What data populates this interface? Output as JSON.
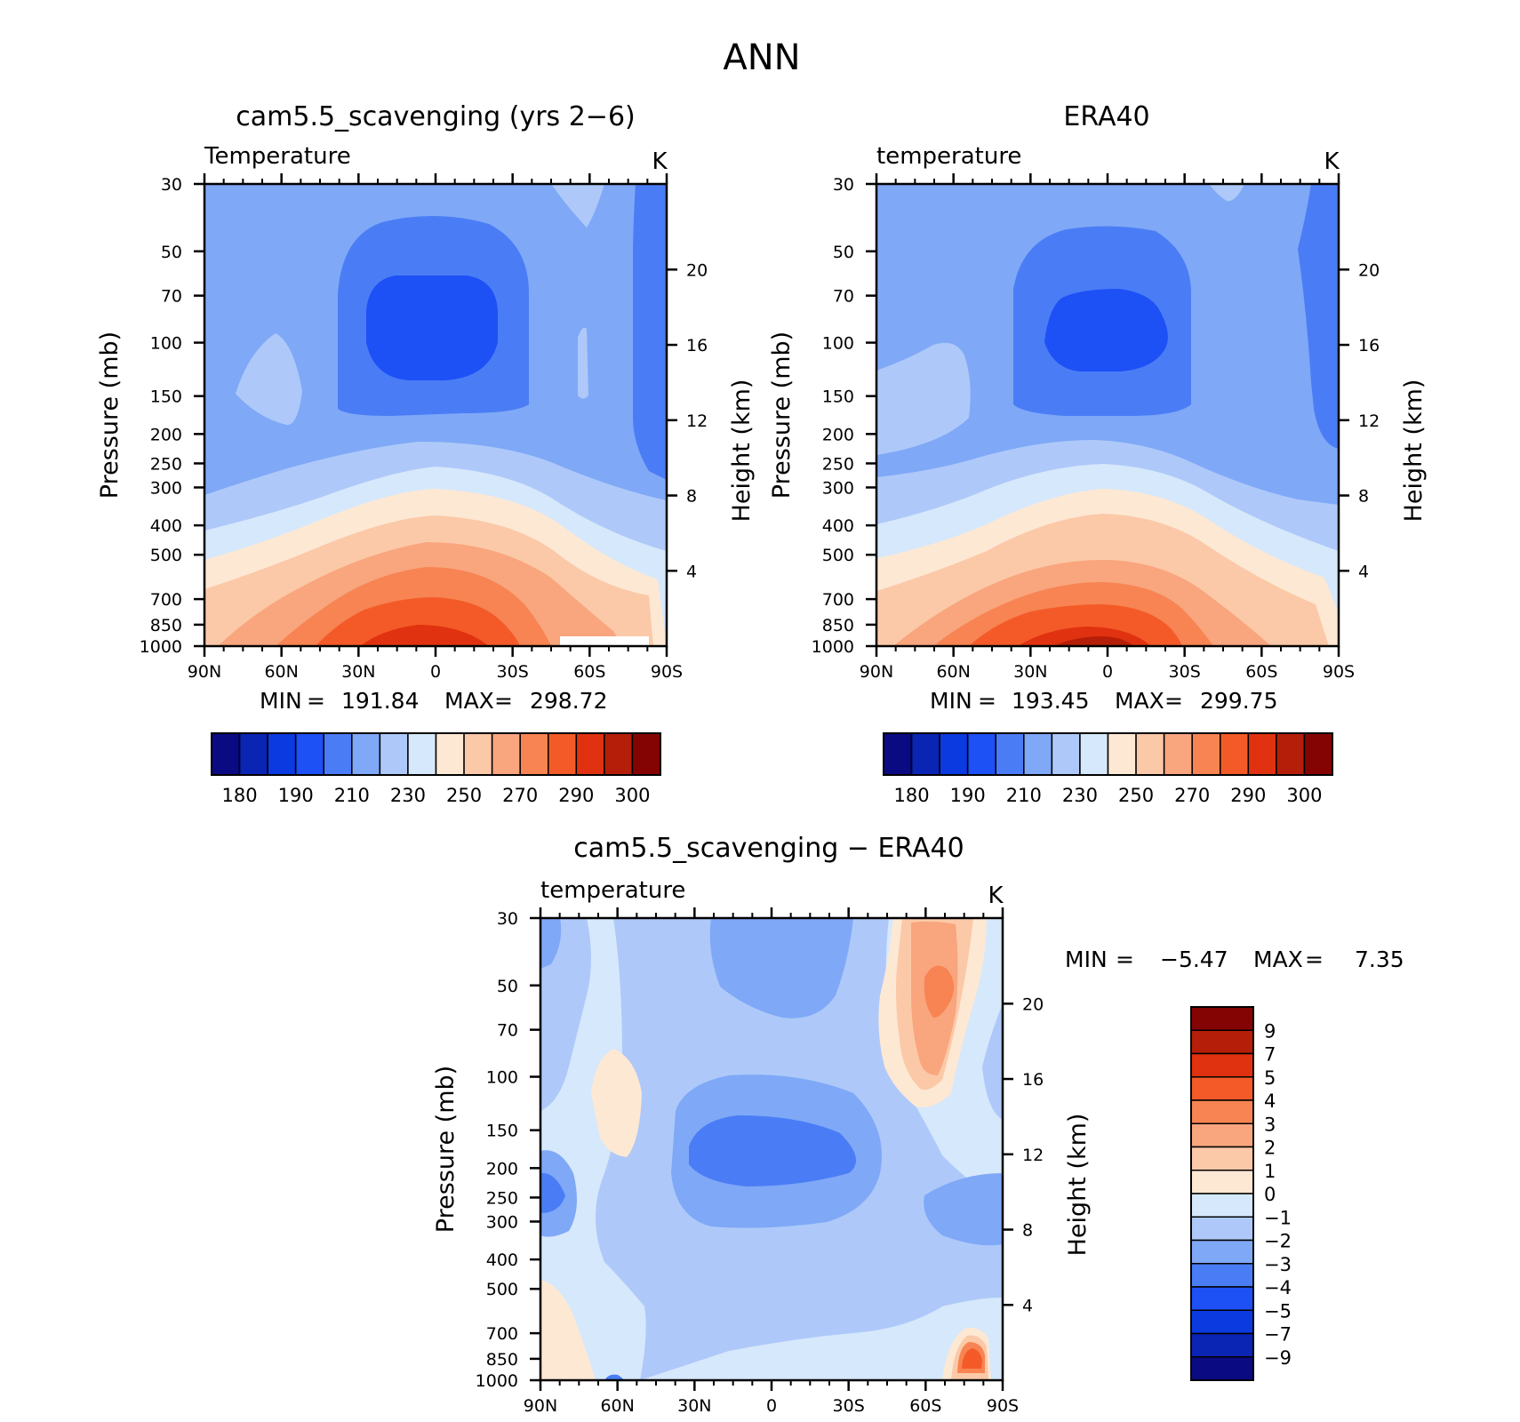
{
  "title": "ANN",
  "ramp_colors": [
    "#0a0a82",
    "#0a24b4",
    "#0a3ae0",
    "#1d50f5",
    "#4a7df5",
    "#7fa8f7",
    "#aec9f9",
    "#d6e8fb",
    "#fde8d4",
    "#fbc9a8",
    "#f9a57e",
    "#f78452",
    "#f45a28",
    "#e03210",
    "#b51e08",
    "#840404"
  ],
  "chart_data": [
    {
      "type": "heatmap",
      "panel": "cam5.5_scavenging (yrs 2-6)",
      "title": "cam5.5_scavenging (yrs 2−6)",
      "subtitle_left": "Temperature",
      "units": "K",
      "ylabel": "Pressure (mb)",
      "ylabel_right": "Height (km)",
      "x_ticks": [
        "90N",
        "60N",
        "30N",
        "0",
        "30S",
        "60S",
        "90S"
      ],
      "y_ticks": [
        "30",
        "50",
        "70",
        "100",
        "150",
        "200",
        "250",
        "300",
        "400",
        "500",
        "700",
        "850",
        "1000"
      ],
      "y_ticks_right": [
        "20",
        "16",
        "12",
        "8",
        "4"
      ],
      "min_label": "MIN",
      "min": "191.84",
      "max_label": "MAX",
      "max": "298.72",
      "colorbar_labels": [
        "180",
        "190",
        "210",
        "230",
        "250",
        "270",
        "290",
        "300"
      ],
      "xlim": [
        -90,
        90
      ],
      "ylim_mb": [
        30,
        1000
      ]
    },
    {
      "type": "heatmap",
      "panel": "ERA40",
      "title": "ERA40",
      "subtitle_left": "temperature",
      "units": "K",
      "ylabel": "Pressure (mb)",
      "ylabel_right": "Height (km)",
      "x_ticks": [
        "90N",
        "60N",
        "30N",
        "0",
        "30S",
        "60S",
        "90S"
      ],
      "y_ticks": [
        "30",
        "50",
        "70",
        "100",
        "150",
        "200",
        "250",
        "300",
        "400",
        "500",
        "700",
        "850",
        "1000"
      ],
      "y_ticks_right": [
        "20",
        "16",
        "12",
        "8",
        "4"
      ],
      "min_label": "MIN",
      "min": "193.45",
      "max_label": "MAX",
      "max": "299.75",
      "colorbar_labels": [
        "180",
        "190",
        "210",
        "230",
        "250",
        "270",
        "290",
        "300"
      ],
      "xlim": [
        -90,
        90
      ],
      "ylim_mb": [
        30,
        1000
      ]
    },
    {
      "type": "heatmap",
      "panel": "difference",
      "title": "cam5.5_scavenging − ERA40",
      "subtitle_left": "temperature",
      "units": "K",
      "ylabel": "Pressure (mb)",
      "ylabel_right": "Height (km)",
      "x_ticks": [
        "90N",
        "60N",
        "30N",
        "0",
        "30S",
        "60S",
        "90S"
      ],
      "y_ticks": [
        "30",
        "50",
        "70",
        "100",
        "150",
        "200",
        "250",
        "300",
        "400",
        "500",
        "700",
        "850",
        "1000"
      ],
      "y_ticks_right": [
        "20",
        "16",
        "12",
        "8",
        "4"
      ],
      "min_label": "MIN",
      "min": "−5.47",
      "max_label": "MAX",
      "max": "7.35",
      "colorbar_labels": [
        "9",
        "7",
        "5",
        "4",
        "3",
        "2",
        "1",
        "0",
        "−1",
        "−2",
        "−3",
        "−4",
        "−5",
        "−7",
        "−9"
      ],
      "xlim": [
        -90,
        90
      ],
      "ylim_mb": [
        30,
        1000
      ]
    }
  ]
}
